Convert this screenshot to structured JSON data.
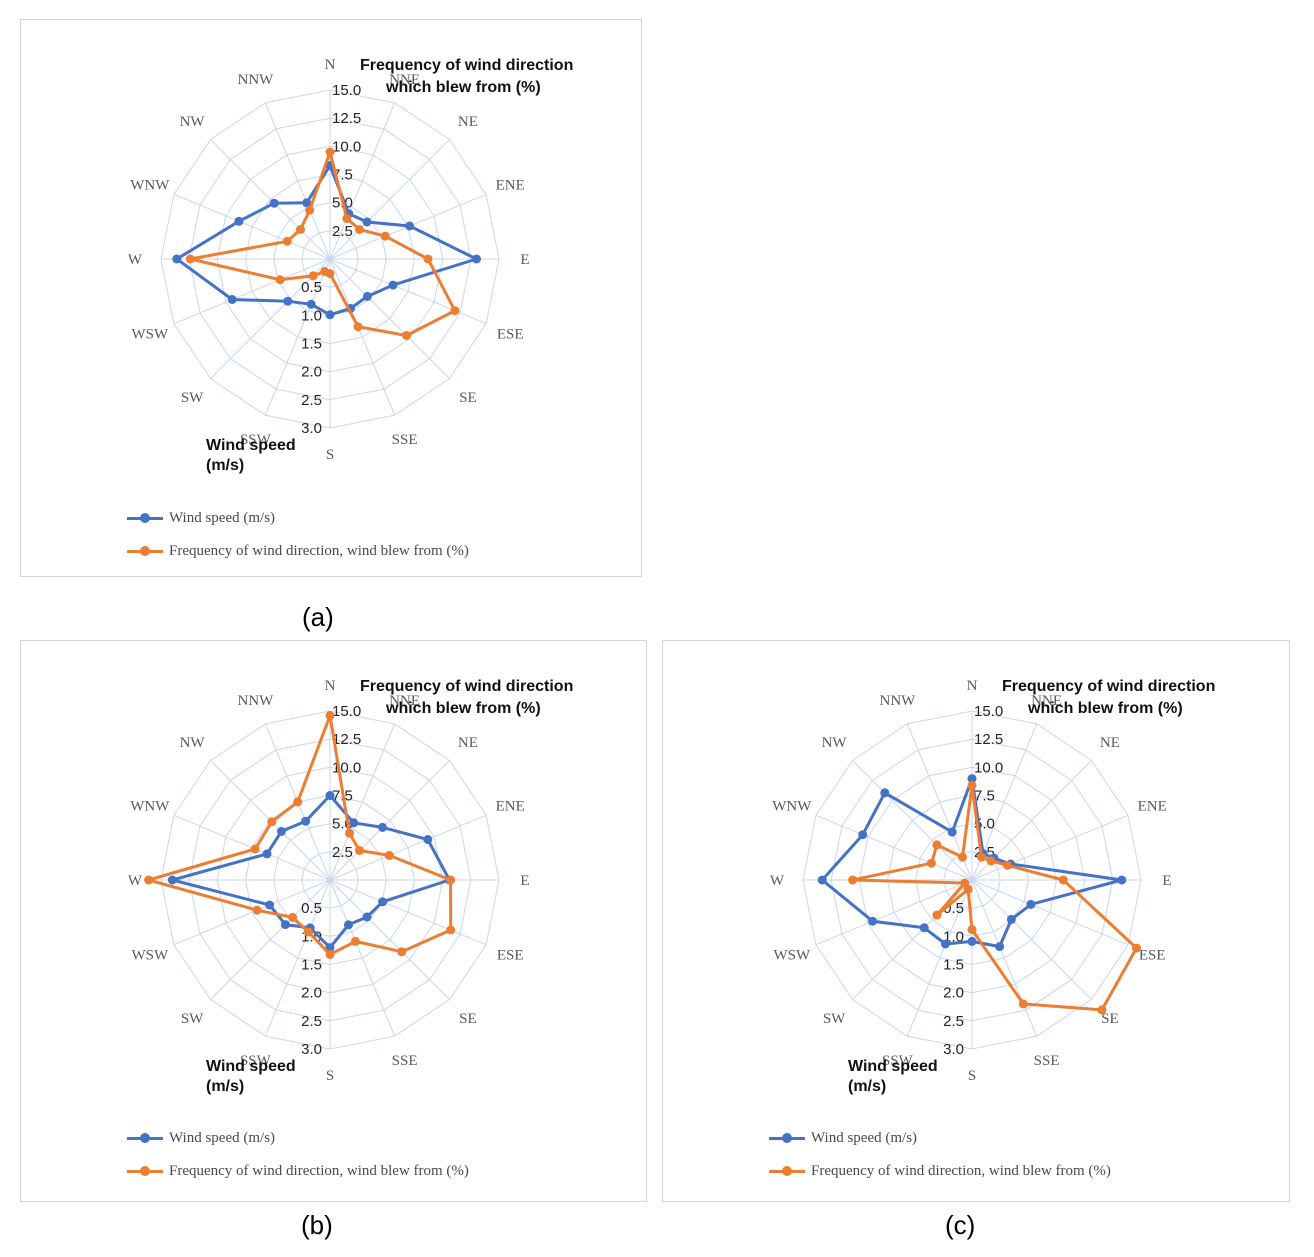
{
  "colors": {
    "speed": "#4472C4",
    "freq": "#ED7D31",
    "grid": "#c9d6ee",
    "panel_border": "#d4d4d4"
  },
  "directions": [
    "N",
    "NNE",
    "NE",
    "ENE",
    "E",
    "ESE",
    "SE",
    "SSE",
    "S",
    "SSW",
    "SW",
    "WSW",
    "W",
    "WNW",
    "NW",
    "NNW"
  ],
  "freq_axis": {
    "title_line1": "Frequency of wind direction",
    "title_line2": "which blew from (%)",
    "ticks": [
      "2.5",
      "5.0",
      "7.5",
      "10.0",
      "12.5",
      "15.0"
    ]
  },
  "speed_axis": {
    "title_line1": "Wind speed",
    "title_line2": "(m/s)",
    "ticks": [
      "0.5",
      "1.0",
      "1.5",
      "2.0",
      "2.5",
      "3.0"
    ]
  },
  "legend": {
    "speed": "Wind speed (m/s)",
    "freq": "Frequency of wind direction, wind blew from (%)"
  },
  "captions": {
    "a": "(a)",
    "b": "(b)",
    "c": "(c)"
  },
  "chart_data": [
    {
      "id": "a",
      "type": "radar",
      "title": "",
      "categories": [
        "N",
        "NNE",
        "NE",
        "ENE",
        "E",
        "ESE",
        "SE",
        "SSE",
        "S",
        "SSW",
        "SW",
        "WSW",
        "W",
        "WNW",
        "NW",
        "NNW"
      ],
      "rlim": [
        0,
        3.0
      ],
      "series": [
        {
          "name": "Wind speed (m/s)",
          "values": [
            1.66,
            0.87,
            0.93,
            1.53,
            2.6,
            1.21,
            0.94,
            0.95,
            0.99,
            0.87,
            1.06,
            1.88,
            2.72,
            1.75,
            1.4,
            1.08
          ]
        },
        {
          "name": "Frequency of wind direction, wind blew from (%)",
          "values": [
            9.5,
            3.9,
            3.7,
            5.3,
            8.7,
            12.0,
            9.6,
            6.5,
            1.3,
            1.2,
            2.1,
            4.8,
            12.4,
            4.1,
            3.7,
            4.7
          ]
        }
      ]
    },
    {
      "id": "b",
      "type": "radar",
      "title": "",
      "categories": [
        "N",
        "NNE",
        "NE",
        "ENE",
        "E",
        "ESE",
        "SE",
        "SSE",
        "S",
        "SSW",
        "SW",
        "WSW",
        "W",
        "WNW",
        "NW",
        "NNW"
      ],
      "rlim": [
        0,
        3.0
      ],
      "series": [
        {
          "name": "Wind speed (m/s)",
          "values": [
            1.5,
            1.1,
            1.32,
            1.88,
            2.12,
            1.01,
            0.93,
            0.86,
            1.2,
            0.92,
            1.12,
            1.16,
            2.8,
            1.21,
            1.22,
            1.13
          ]
        },
        {
          "name": "Frequency of wind direction, wind blew from (%)",
          "values": [
            14.6,
            4.5,
            3.7,
            5.7,
            10.7,
            11.6,
            9.0,
            5.9,
            6.6,
            5.0,
            4.7,
            7.0,
            16.1,
            7.2,
            7.3,
            7.5
          ]
        }
      ]
    },
    {
      "id": "c",
      "type": "radar",
      "title": "",
      "categories": [
        "N",
        "NNE",
        "NE",
        "ENE",
        "E",
        "ESE",
        "SE",
        "SSE",
        "S",
        "SSW",
        "SW",
        "WSW",
        "W",
        "WNW",
        "NW",
        "NNW"
      ],
      "rlim": [
        0,
        3.0
      ],
      "series": [
        {
          "name": "Wind speed (m/s)",
          "values": [
            1.8,
            0.51,
            0.55,
            0.74,
            2.66,
            1.13,
            0.99,
            1.28,
            1.09,
            1.23,
            1.2,
            1.91,
            2.66,
            2.1,
            2.19,
            0.92
          ]
        },
        {
          "name": "Frequency of wind direction, wind blew from (%)",
          "values": [
            8.4,
            2.2,
            2.4,
            3.4,
            8.1,
            15.8,
            16.3,
            11.9,
            4.4,
            0.9,
            4.4,
            0.7,
            10.6,
            3.9,
            4.4,
            2.2
          ]
        }
      ]
    }
  ]
}
